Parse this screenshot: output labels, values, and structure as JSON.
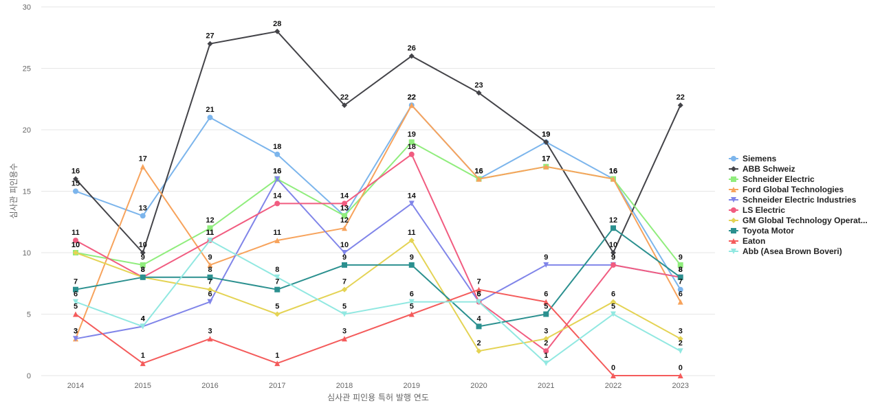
{
  "chart_data": {
    "type": "line",
    "title": "",
    "xlabel": "심사관 피인용 특허 발행 연도",
    "ylabel": "심사관 피인용수",
    "ylim": [
      0,
      30
    ],
    "yticks": [
      0,
      5,
      10,
      15,
      20,
      25,
      30
    ],
    "grid": true,
    "legend_position": "right",
    "categories": [
      "2014",
      "2015",
      "2016",
      "2017",
      "2018",
      "2019",
      "2020",
      "2021",
      "2022",
      "2023"
    ],
    "series": [
      {
        "name": "Siemens",
        "color": "#7cb5ec",
        "marker": "circle",
        "values": [
          15,
          13,
          21,
          18,
          13,
          22,
          16,
          19,
          16,
          7
        ]
      },
      {
        "name": "ABB Schweiz",
        "color": "#434348",
        "marker": "diamond",
        "values": [
          16,
          10,
          27,
          28,
          22,
          26,
          23,
          19,
          10,
          22
        ]
      },
      {
        "name": "Schneider Electric",
        "color": "#90ed7d",
        "marker": "square",
        "values": [
          10,
          9,
          12,
          16,
          13,
          19,
          16,
          17,
          16,
          9
        ]
      },
      {
        "name": "Ford Global Technologies",
        "color": "#f7a35c",
        "marker": "triangle",
        "values": [
          3,
          17,
          9,
          11,
          12,
          22,
          16,
          17,
          16,
          6
        ]
      },
      {
        "name": "Schneider Electric Industries",
        "color": "#8085e9",
        "marker": "triangle-down",
        "values": [
          3,
          4,
          6,
          16,
          10,
          14,
          6,
          9,
          9,
          8
        ]
      },
      {
        "name": "LS Electric",
        "color": "#f15c80",
        "marker": "circle",
        "values": [
          11,
          8,
          11,
          14,
          14,
          18,
          6,
          2,
          9,
          8
        ]
      },
      {
        "name": "GM Global Technology Operat...",
        "color": "#e4d354",
        "marker": "diamond",
        "values": [
          10,
          8,
          7,
          5,
          7,
          11,
          2,
          3,
          6,
          3
        ]
      },
      {
        "name": "Toyota Motor",
        "color": "#2b908f",
        "marker": "square",
        "values": [
          7,
          8,
          8,
          7,
          9,
          9,
          4,
          5,
          12,
          8
        ]
      },
      {
        "name": "Eaton",
        "color": "#f45b5b",
        "marker": "triangle",
        "values": [
          5,
          1,
          3,
          1,
          3,
          5,
          7,
          6,
          0,
          0
        ]
      },
      {
        "name": "Abb (Asea Brown Boveri)",
        "color": "#91e8e1",
        "marker": "triangle-down",
        "values": [
          6,
          4,
          11,
          8,
          5,
          6,
          6,
          1,
          5,
          2
        ]
      }
    ]
  }
}
